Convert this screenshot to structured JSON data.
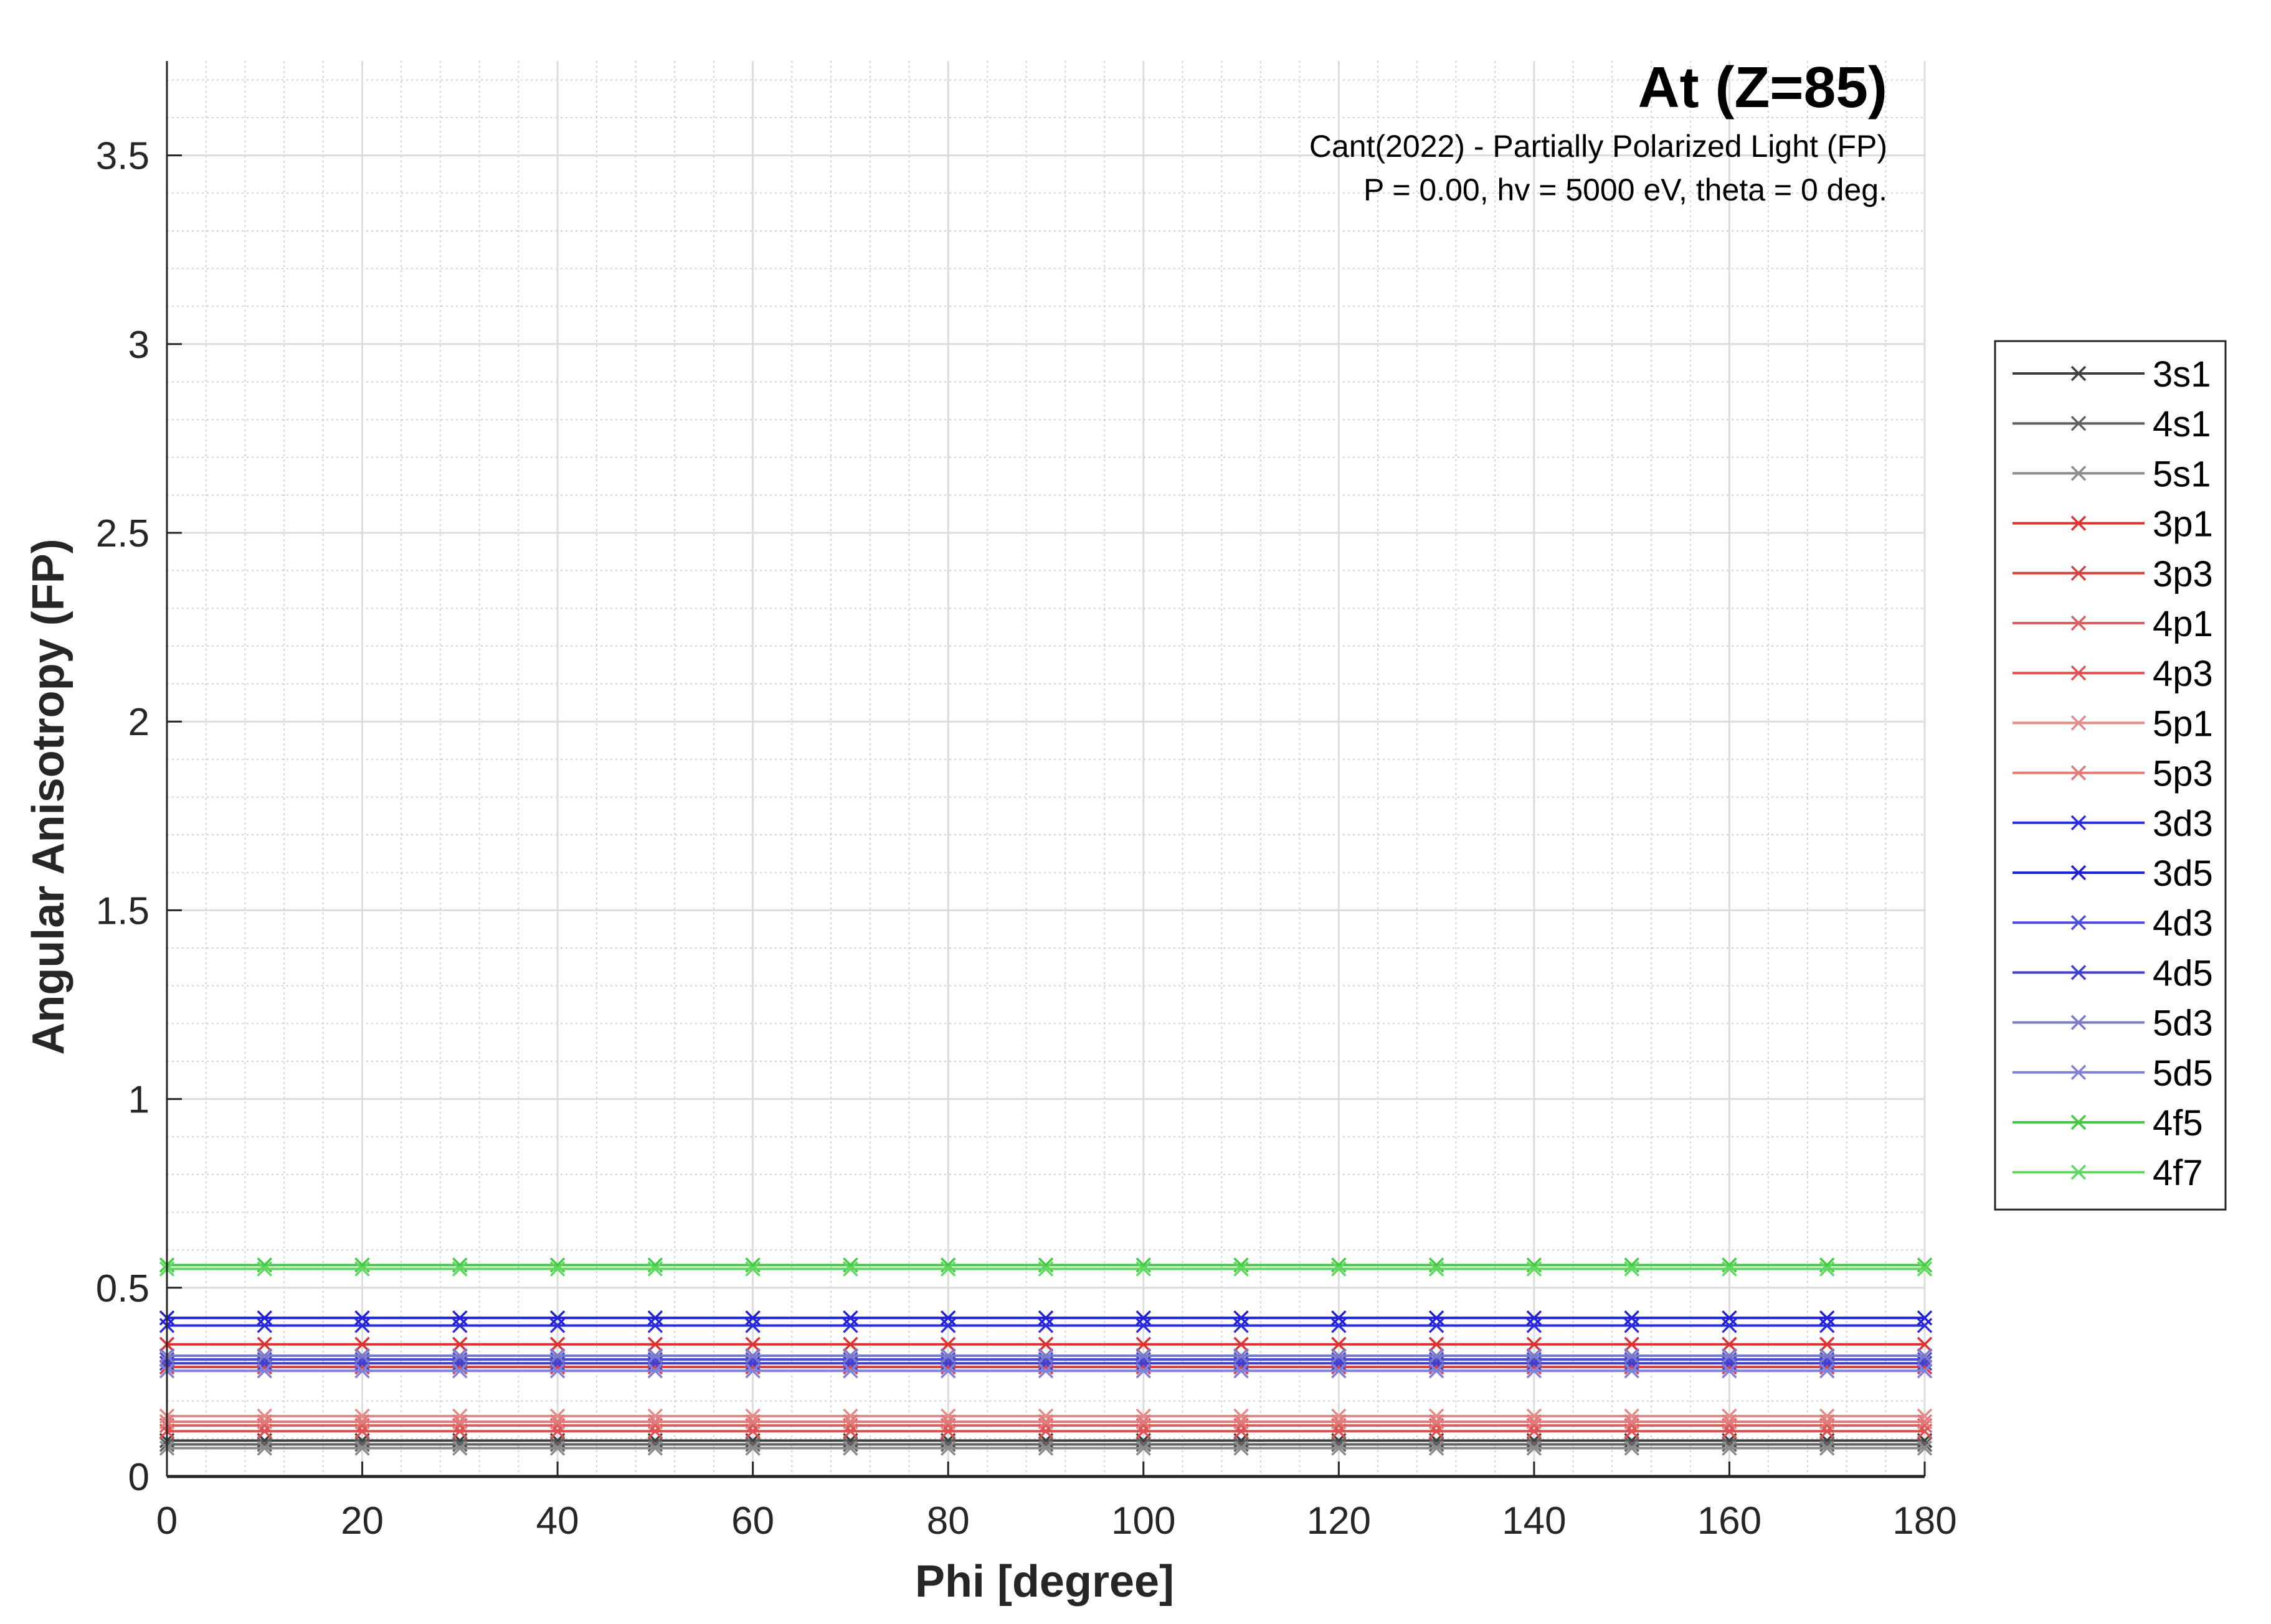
{
  "chart_data": {
    "type": "line",
    "title": "At (Z=85)",
    "subtitle_lines": [
      "Cant(2022) - Partially Polarized Light (FP)",
      "P = 0.00, hv = 5000 eV, theta = 0 deg."
    ],
    "xlabel": "Phi [degree]",
    "ylabel": "Angular Anisotropy (FP)",
    "xlim": [
      0,
      180
    ],
    "ylim": [
      0,
      3.75
    ],
    "x_ticks": [
      0,
      20,
      40,
      60,
      80,
      100,
      120,
      140,
      160,
      180
    ],
    "x_tick_labels": [
      "0",
      "20",
      "40",
      "60",
      "80",
      "100",
      "120",
      "140",
      "160",
      "180"
    ],
    "y_ticks": [
      0,
      0.5,
      1,
      1.5,
      2,
      2.5,
      3,
      3.5
    ],
    "y_tick_labels": [
      "0",
      "0.5",
      "1",
      "1.5",
      "2",
      "2.5",
      "3",
      "3.5"
    ],
    "grid": true,
    "minor_grid": true,
    "legend_position": "right",
    "x": [
      0,
      10,
      20,
      30,
      40,
      50,
      60,
      70,
      80,
      90,
      100,
      110,
      120,
      130,
      140,
      150,
      160,
      170,
      180
    ],
    "series": [
      {
        "name": "3s1",
        "color": "#404040",
        "value": 0.095
      },
      {
        "name": "4s1",
        "color": "#606060",
        "value": 0.085
      },
      {
        "name": "5s1",
        "color": "#8c8c8c",
        "value": 0.075
      },
      {
        "name": "3p1",
        "color": "#e03030",
        "value": 0.35
      },
      {
        "name": "3p3",
        "color": "#d84040",
        "value": 0.29
      },
      {
        "name": "4p1",
        "color": "#d86060",
        "value": 0.135
      },
      {
        "name": "4p3",
        "color": "#e05050",
        "value": 0.12
      },
      {
        "name": "5p1",
        "color": "#e58a8a",
        "value": 0.16
      },
      {
        "name": "5p3",
        "color": "#e27a7a",
        "value": 0.145
      },
      {
        "name": "3d3",
        "color": "#2a2ae0",
        "value": 0.4
      },
      {
        "name": "3d5",
        "color": "#2020d8",
        "value": 0.42
      },
      {
        "name": "4d3",
        "color": "#4a4ae0",
        "value": 0.31
      },
      {
        "name": "4d5",
        "color": "#4040d0",
        "value": 0.3
      },
      {
        "name": "5d3",
        "color": "#7a7ac8",
        "value": 0.32
      },
      {
        "name": "5d5",
        "color": "#8080d8",
        "value": 0.28
      },
      {
        "name": "4f5",
        "color": "#40cc40",
        "value": 0.56
      },
      {
        "name": "4f7",
        "color": "#60d860",
        "value": 0.55
      }
    ]
  }
}
